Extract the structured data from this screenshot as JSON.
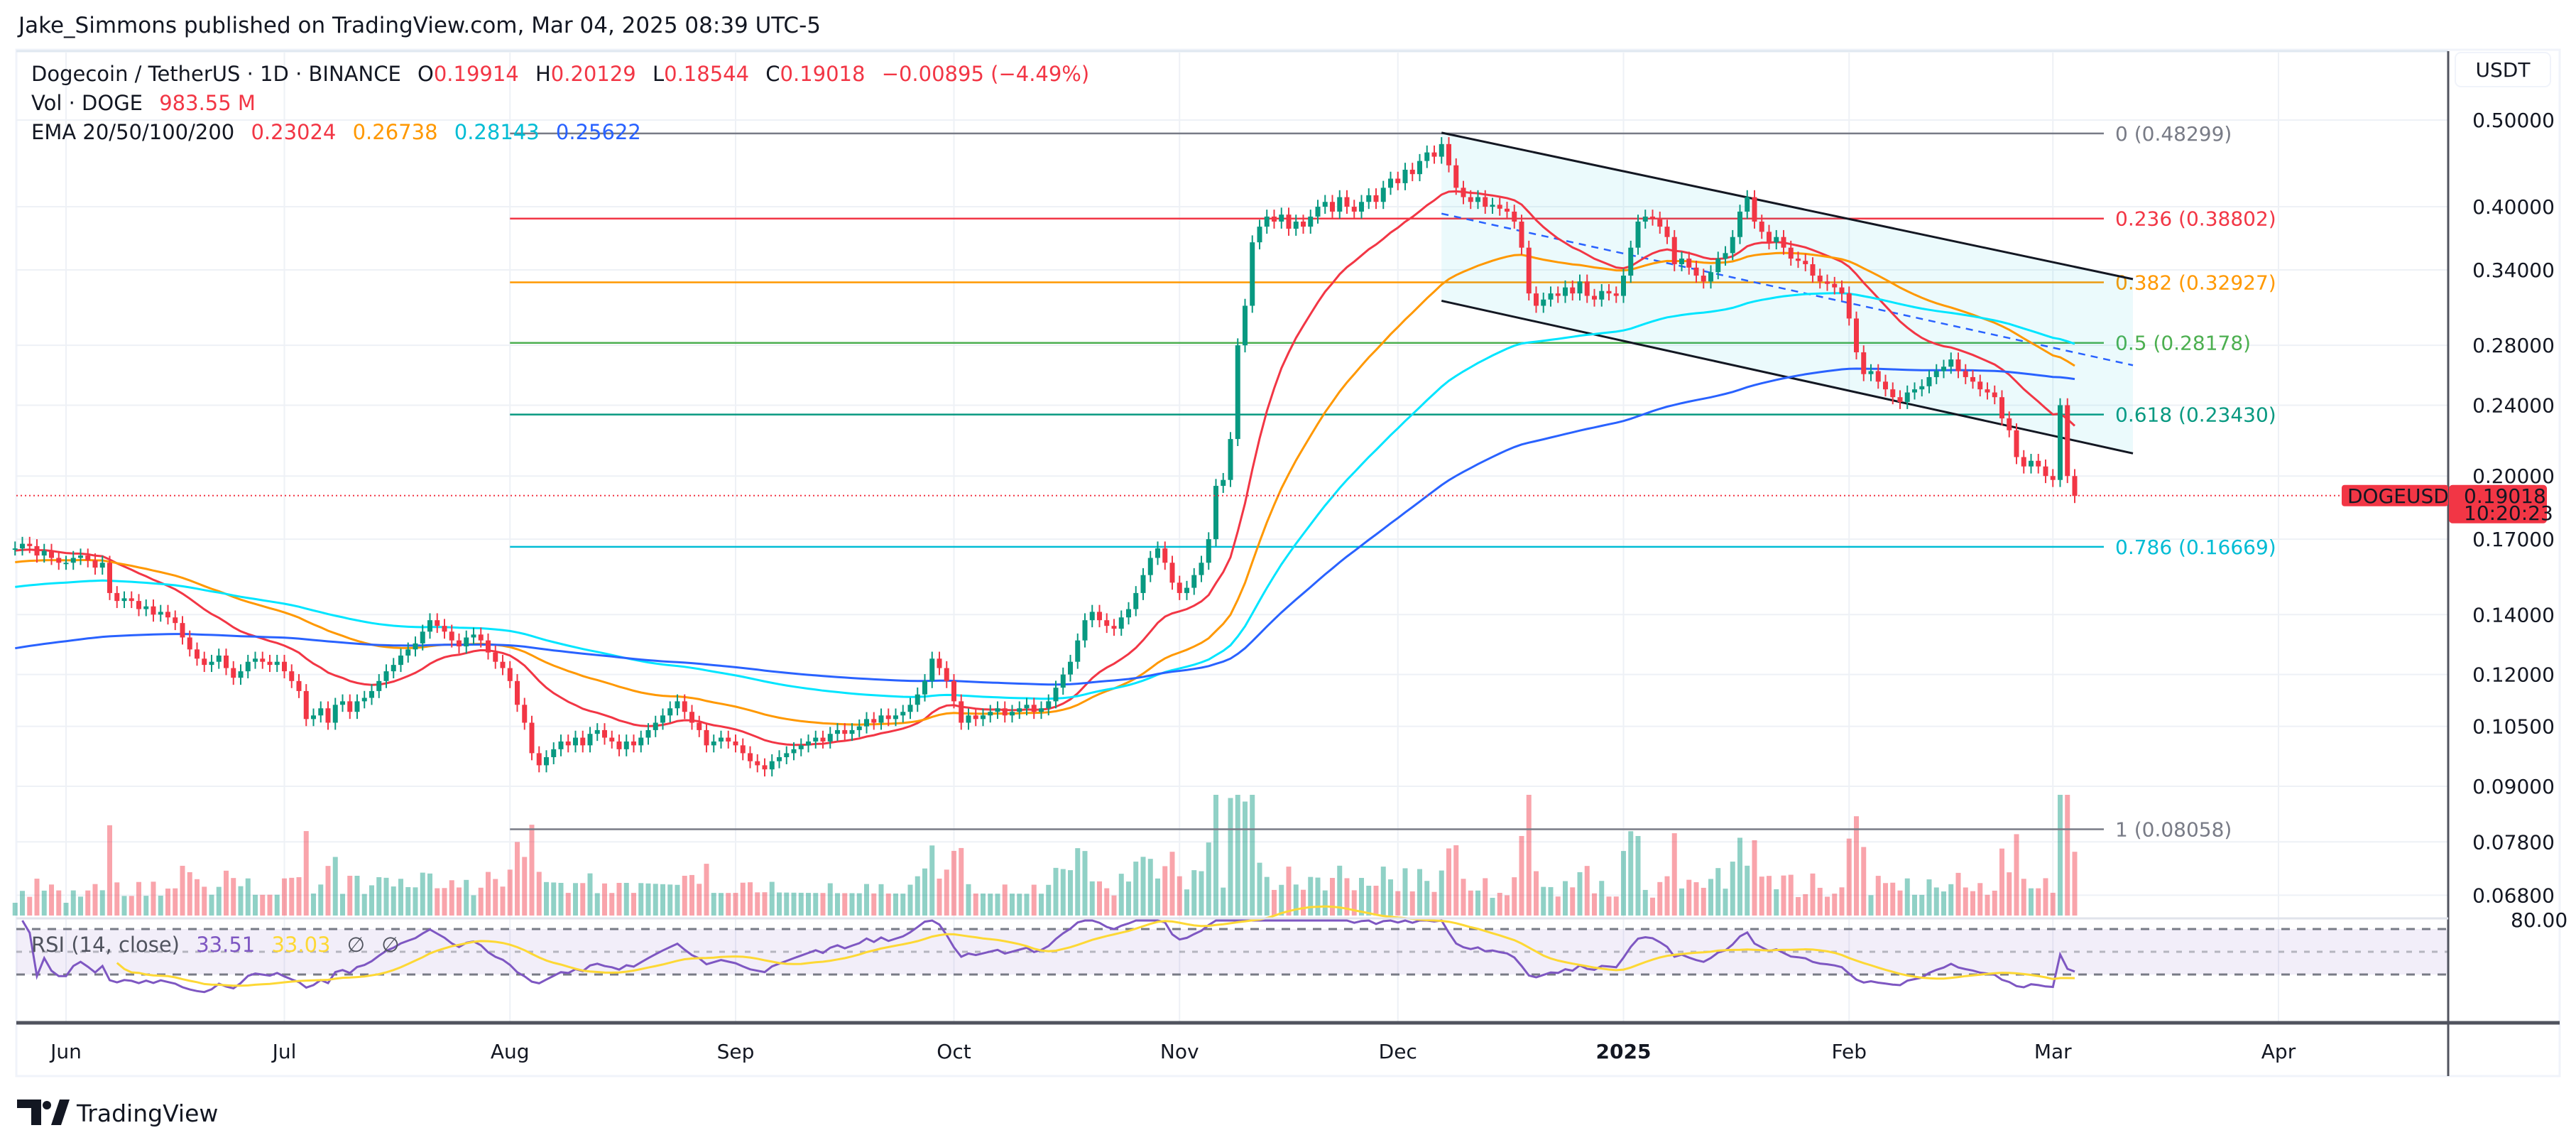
{
  "header": {
    "published": "Jake_Simmons published on TradingView.com, Mar 04, 2025 08:39 UTC-5"
  },
  "legend": {
    "symbol": "Dogecoin / TetherUS · 1D · BINANCE",
    "o_label": "O",
    "o": "0.19914",
    "h_label": "H",
    "h": "0.20129",
    "l_label": "L",
    "l": "0.18544",
    "c_label": "C",
    "c": "0.19018",
    "change": "−0.00895 (−4.49%)",
    "vol_label": "Vol · DOGE",
    "vol": "983.55 M",
    "ema_label": "EMA 20/50/100/200",
    "ema20": "0.23024",
    "ema50": "0.26738",
    "ema100": "0.28143",
    "ema200": "0.25622",
    "rsi_label": "RSI (14, close)",
    "rsi": "33.51",
    "rsi_ma": "33.03",
    "rsi_na1": "∅",
    "rsi_na2": "∅"
  },
  "price_axis": {
    "currency": "USDT",
    "rsi_tick": "80.00"
  },
  "last_price": {
    "symbol": "DOGEUSDT",
    "price": "0.19018",
    "countdown": "10:20:23"
  },
  "footer": {
    "brand": "TradingView"
  },
  "colors": {
    "up": "#089981",
    "down": "#f23645",
    "ema20": "#f23645",
    "ema50": "#ff9800",
    "ema100": "#00e5ff",
    "ema200": "#2962ff",
    "rsi": "#7e57c2",
    "rsi_ma": "#fdd835",
    "channel": "#131722",
    "channel_mid": "#2962ff"
  },
  "chart_data": {
    "type": "candlestick",
    "title": "Dogecoin / TetherUS · 1D · BINANCE",
    "y_scale": "log",
    "ylim": [
      0.062,
      0.52
    ],
    "xlim": [
      "2024-05-25",
      "2025-04-30"
    ],
    "grid": true,
    "start_date": "2024-05-25",
    "y_ticks": [
      0.5,
      0.4,
      0.34,
      0.28,
      0.24,
      0.2,
      0.17,
      0.14,
      0.12,
      0.105,
      0.09,
      0.078,
      0.068
    ],
    "y_tick_labels": [
      "0.50000",
      "0.40000",
      "0.34000",
      "0.28000",
      "0.24000",
      "0.20000",
      "0.17000",
      "0.14000",
      "0.12000",
      "0.10500",
      "0.09000",
      "0.07800",
      "0.06800"
    ],
    "x_ticks": [
      {
        "label": "Jun",
        "date": "2024-06-01"
      },
      {
        "label": "Jul",
        "date": "2024-07-01"
      },
      {
        "label": "Aug",
        "date": "2024-08-01"
      },
      {
        "label": "Sep",
        "date": "2024-09-01"
      },
      {
        "label": "Oct",
        "date": "2024-10-01"
      },
      {
        "label": "Nov",
        "date": "2024-11-01"
      },
      {
        "label": "Dec",
        "date": "2024-12-01"
      },
      {
        "label": "2025",
        "date": "2025-01-01"
      },
      {
        "label": "Feb",
        "date": "2025-02-01"
      },
      {
        "label": "Mar",
        "date": "2025-03-01"
      },
      {
        "label": "Apr",
        "date": "2025-04-01"
      }
    ],
    "closes": [
      0.166,
      0.168,
      0.167,
      0.163,
      0.165,
      0.162,
      0.16,
      0.16,
      0.162,
      0.163,
      0.161,
      0.158,
      0.16,
      0.148,
      0.145,
      0.146,
      0.145,
      0.142,
      0.143,
      0.14,
      0.141,
      0.139,
      0.137,
      0.132,
      0.128,
      0.125,
      0.123,
      0.124,
      0.126,
      0.122,
      0.119,
      0.121,
      0.124,
      0.125,
      0.124,
      0.123,
      0.124,
      0.121,
      0.118,
      0.115,
      0.107,
      0.108,
      0.11,
      0.106,
      0.111,
      0.112,
      0.109,
      0.112,
      0.113,
      0.115,
      0.118,
      0.121,
      0.123,
      0.126,
      0.128,
      0.13,
      0.134,
      0.138,
      0.136,
      0.134,
      0.131,
      0.129,
      0.132,
      0.133,
      0.131,
      0.127,
      0.124,
      0.122,
      0.118,
      0.111,
      0.106,
      0.098,
      0.095,
      0.097,
      0.099,
      0.101,
      0.1,
      0.102,
      0.1,
      0.103,
      0.104,
      0.102,
      0.101,
      0.099,
      0.101,
      0.1,
      0.102,
      0.104,
      0.106,
      0.108,
      0.11,
      0.112,
      0.109,
      0.106,
      0.104,
      0.1,
      0.101,
      0.102,
      0.101,
      0.1,
      0.098,
      0.096,
      0.095,
      0.094,
      0.096,
      0.097,
      0.098,
      0.099,
      0.1,
      0.101,
      0.102,
      0.101,
      0.103,
      0.104,
      0.103,
      0.104,
      0.105,
      0.107,
      0.106,
      0.108,
      0.107,
      0.108,
      0.109,
      0.111,
      0.114,
      0.118,
      0.125,
      0.122,
      0.118,
      0.112,
      0.106,
      0.108,
      0.107,
      0.108,
      0.109,
      0.11,
      0.108,
      0.109,
      0.11,
      0.111,
      0.109,
      0.11,
      0.112,
      0.116,
      0.12,
      0.124,
      0.131,
      0.138,
      0.141,
      0.138,
      0.136,
      0.135,
      0.139,
      0.142,
      0.148,
      0.155,
      0.162,
      0.166,
      0.16,
      0.152,
      0.148,
      0.15,
      0.155,
      0.16,
      0.17,
      0.195,
      0.198,
      0.22,
      0.28,
      0.31,
      0.365,
      0.38,
      0.39,
      0.385,
      0.392,
      0.378,
      0.385,
      0.38,
      0.39,
      0.4,
      0.405,
      0.395,
      0.41,
      0.4,
      0.395,
      0.405,
      0.412,
      0.405,
      0.42,
      0.43,
      0.425,
      0.44,
      0.435,
      0.45,
      0.46,
      0.455,
      0.47,
      0.445,
      0.42,
      0.41,
      0.405,
      0.41,
      0.4,
      0.402,
      0.398,
      0.395,
      0.385,
      0.36,
      0.32,
      0.31,
      0.315,
      0.32,
      0.318,
      0.325,
      0.32,
      0.33,
      0.318,
      0.315,
      0.322,
      0.32,
      0.318,
      0.335,
      0.36,
      0.385,
      0.39,
      0.388,
      0.38,
      0.37,
      0.345,
      0.35,
      0.342,
      0.335,
      0.33,
      0.338,
      0.35,
      0.355,
      0.37,
      0.395,
      0.41,
      0.385,
      0.375,
      0.365,
      0.37,
      0.36,
      0.35,
      0.348,
      0.345,
      0.335,
      0.33,
      0.328,
      0.325,
      0.32,
      0.3,
      0.275,
      0.26,
      0.262,
      0.255,
      0.25,
      0.245,
      0.242,
      0.248,
      0.25,
      0.252,
      0.258,
      0.262,
      0.265,
      0.27,
      0.262,
      0.258,
      0.255,
      0.25,
      0.248,
      0.245,
      0.232,
      0.225,
      0.21,
      0.205,
      0.208,
      0.205,
      0.2,
      0.198,
      0.24,
      0.2,
      0.19
    ],
    "last_close": 0.19018,
    "fibonacci": {
      "start_date": "2024-08-01",
      "end_date": "2025-03-08",
      "levels": [
        {
          "ratio": "0",
          "price": 0.48299,
          "label": "0 (0.48299)",
          "color": "#787b86"
        },
        {
          "ratio": "0.236",
          "price": 0.38802,
          "label": "0.236 (0.38802)",
          "color": "#f23645"
        },
        {
          "ratio": "0.382",
          "price": 0.32927,
          "label": "0.382 (0.32927)",
          "color": "#ff9800"
        },
        {
          "ratio": "0.5",
          "price": 0.28178,
          "label": "0.5 (0.28178)",
          "color": "#4caf50"
        },
        {
          "ratio": "0.618",
          "price": 0.2343,
          "label": "0.618 (0.23430)",
          "color": "#089981"
        },
        {
          "ratio": "0.786",
          "price": 0.16669,
          "label": "0.786 (0.16669)",
          "color": "#00bcd4"
        },
        {
          "ratio": "1",
          "price": 0.08058,
          "label": "1 (0.08058)",
          "color": "#787b86"
        }
      ]
    },
    "channel": {
      "start_date": "2024-12-07",
      "end_date": "2025-03-12",
      "upper": [
        0.484,
        0.332
      ],
      "middle": [
        0.393,
        0.266
      ],
      "lower": [
        0.314,
        0.212
      ]
    },
    "rsi": {
      "period": 14,
      "upper_band": 70,
      "lower_band": 30
    }
  }
}
